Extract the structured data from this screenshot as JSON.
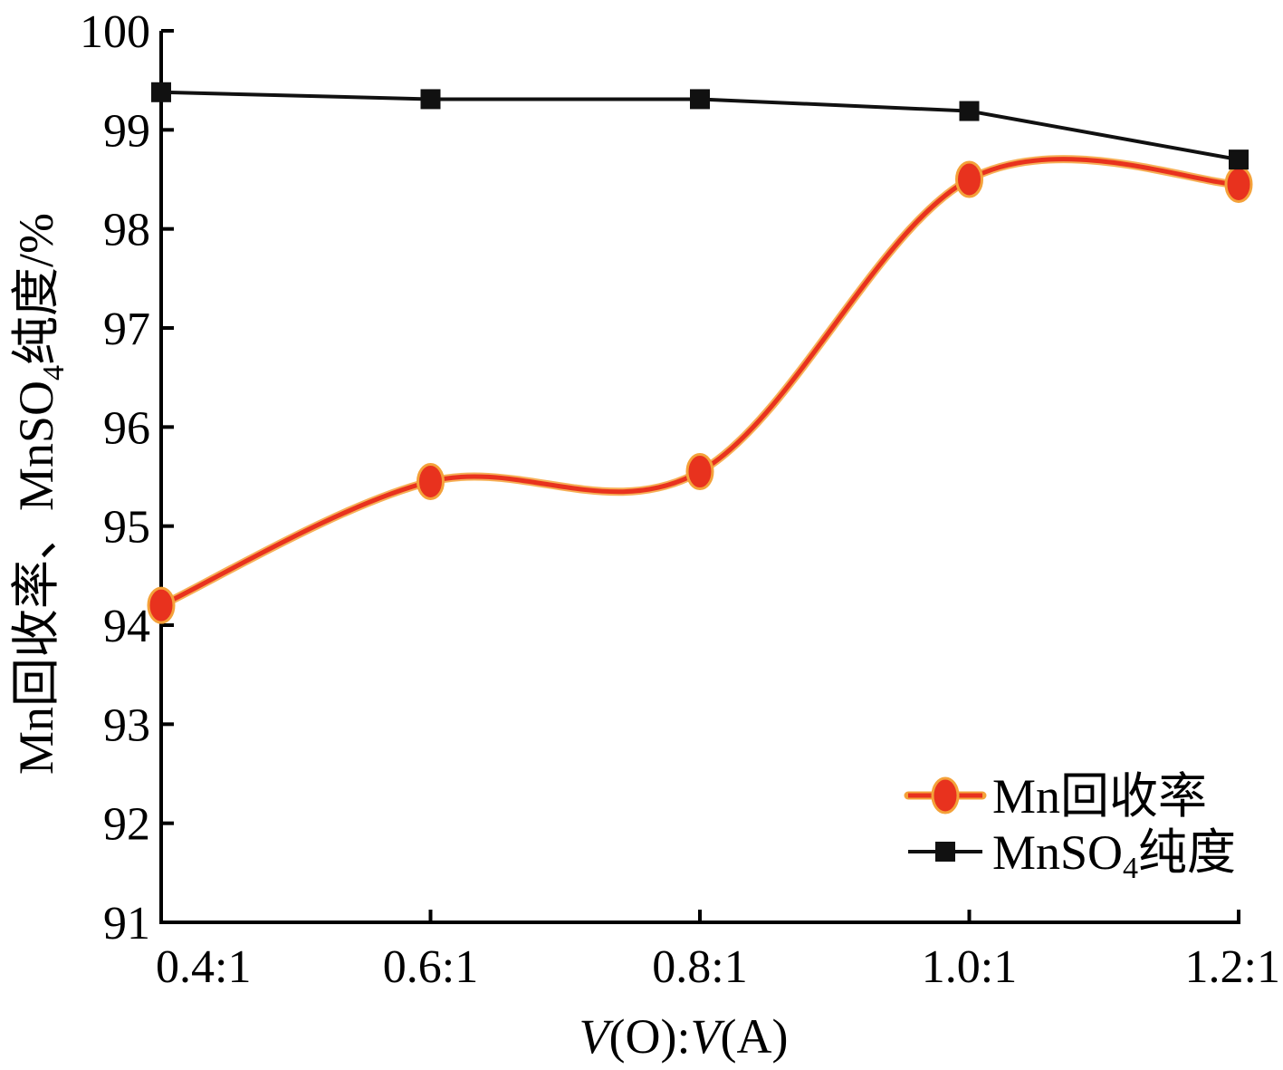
{
  "chart_data": {
    "type": "line",
    "title": "",
    "categories": [
      "0.4:1",
      "0.6:1",
      "0.8:1",
      "1.0:1",
      "1.2:1"
    ],
    "xlabel": "V(O):V(A)",
    "xlabel_parts": [
      "V",
      "(O):",
      "V",
      "(A)"
    ],
    "ylabel": "Mn回收率、MnSO4纯度/%",
    "ylabel_parts": {
      "before": "Mn回收率、MnSO",
      "sub": "4",
      "after": "纯度/%"
    },
    "ylim": [
      91,
      100
    ],
    "yticks": [
      91,
      92,
      93,
      94,
      95,
      96,
      97,
      98,
      99,
      100
    ],
    "grid": false,
    "legend_position": "bottom-right",
    "series": [
      {
        "name": "Mn回收率",
        "name_parts": {
          "before": "Mn回收率",
          "sub": "",
          "after": ""
        },
        "values": [
          94.2,
          95.45,
          95.55,
          98.5,
          98.45
        ],
        "color": "#e8321e",
        "halo_color": "#f4a23a",
        "marker": "circle",
        "smooth": true
      },
      {
        "name": "MnSO4纯度",
        "name_parts": {
          "before": "MnSO",
          "sub": "4",
          "after": "纯度"
        },
        "values": [
          99.38,
          99.31,
          99.31,
          99.19,
          98.7
        ],
        "color": "#111111",
        "marker": "square",
        "smooth": false
      }
    ]
  }
}
